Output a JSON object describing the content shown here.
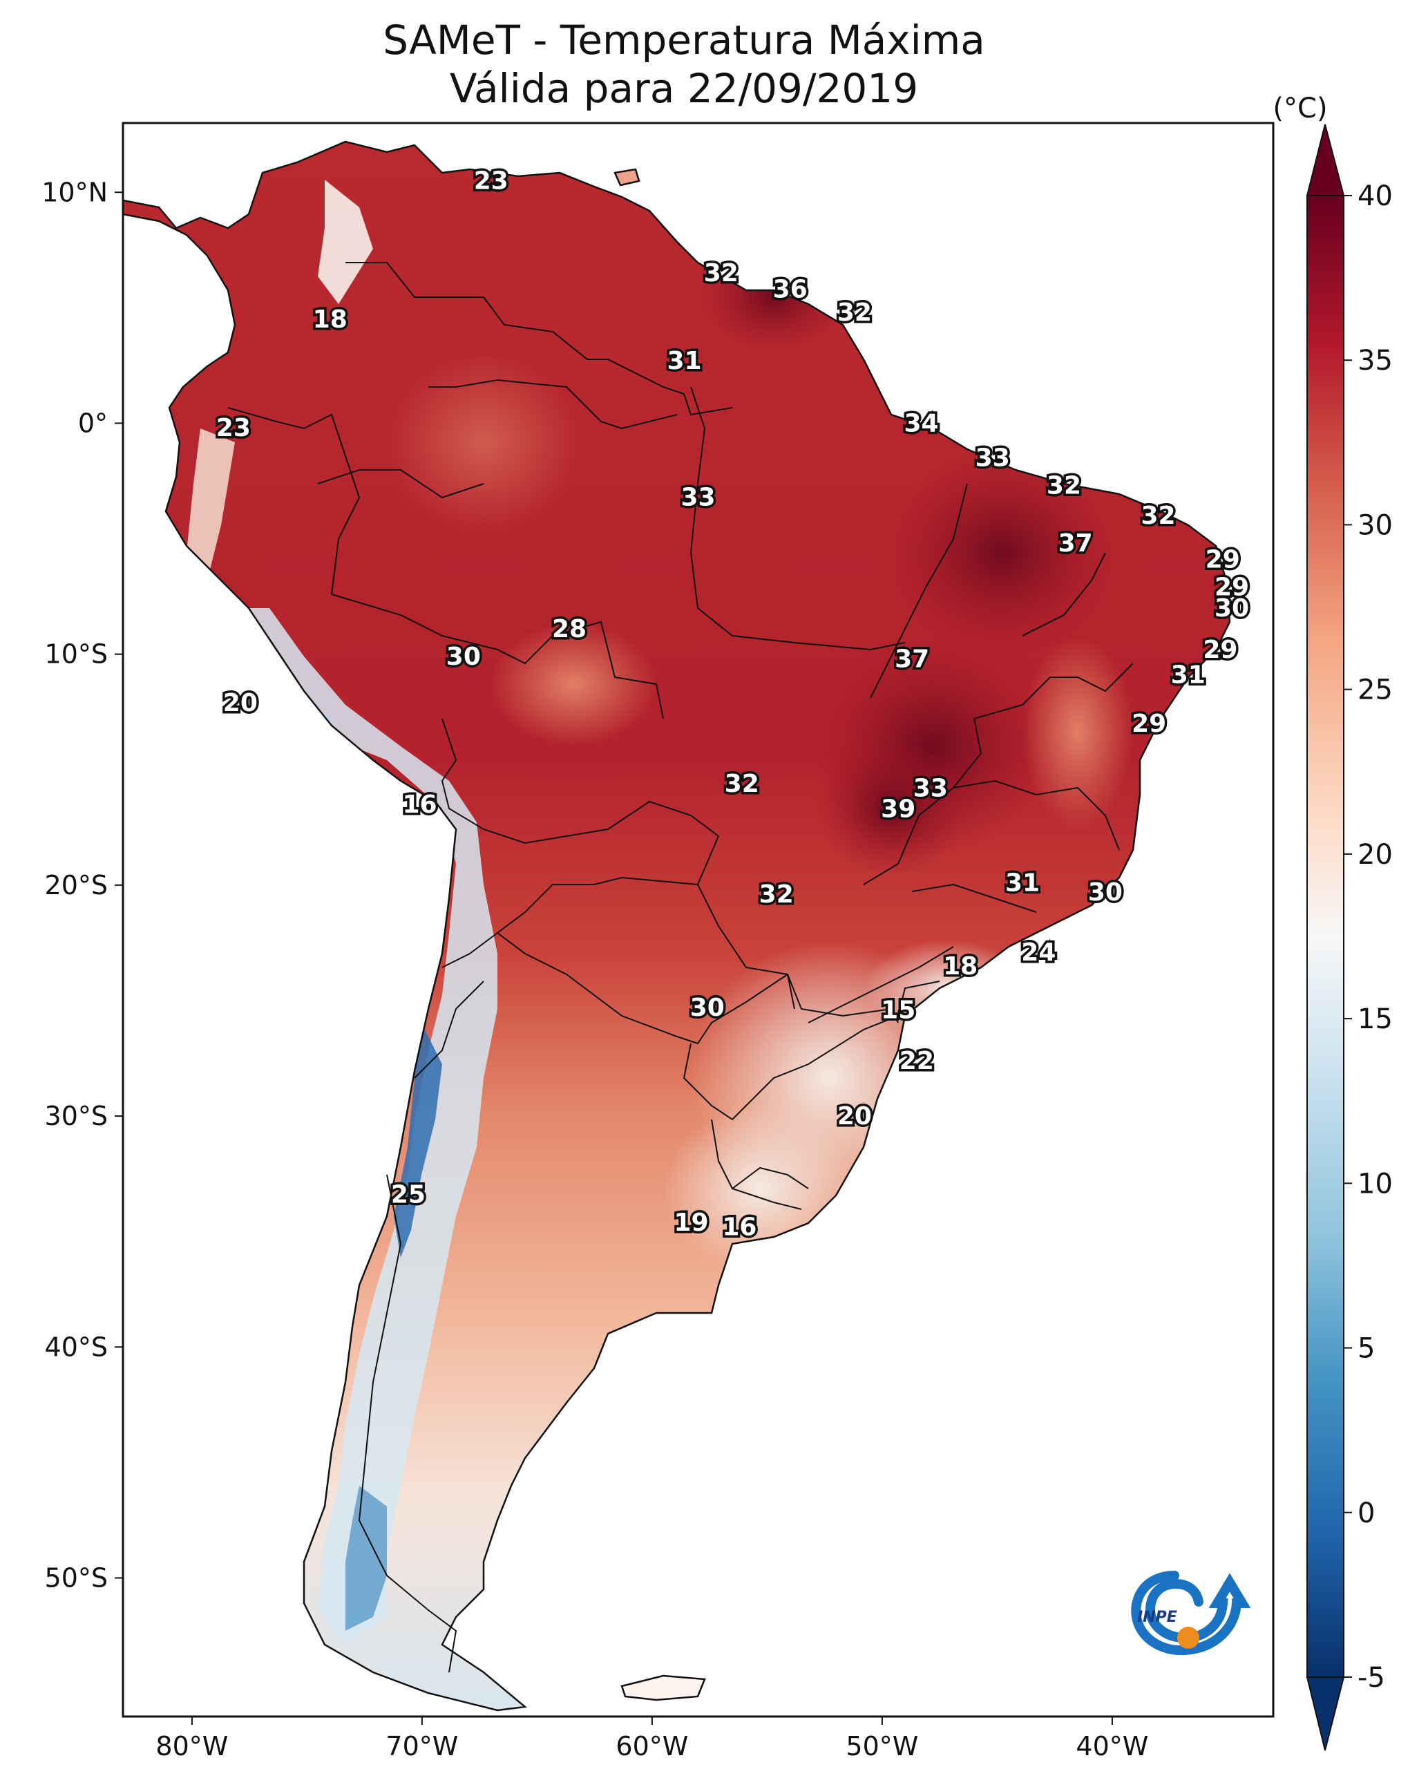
{
  "title": {
    "line1": "SAMeT - Temperatura Máxima",
    "line2": "Válida para 22/09/2019"
  },
  "chart_data": {
    "type": "heatmap",
    "title": "SAMeT - Temperatura Máxima Válida para 22/09/2019",
    "x_axis": {
      "range": [
        -83,
        -33
      ],
      "ticks": [
        -80,
        -70,
        -60,
        -50,
        -40
      ],
      "tick_labels": [
        "80°W",
        "70°W",
        "60°W",
        "50°W",
        "40°W"
      ]
    },
    "y_axis": {
      "range": [
        -56,
        13
      ],
      "ticks": [
        10,
        0,
        -10,
        -20,
        -30,
        -40,
        -50
      ],
      "tick_labels": [
        "10°N",
        "0°",
        "10°S",
        "20°S",
        "30°S",
        "40°S",
        "50°S"
      ]
    },
    "colorbar": {
      "label": "(°C)",
      "range": [
        -5,
        40
      ],
      "ticks": [
        40,
        35,
        30,
        25,
        20,
        15,
        10,
        5,
        0,
        -5
      ],
      "tick_labels": [
        "40",
        "35",
        "30",
        "25",
        "20",
        "15",
        "10",
        "5",
        "0",
        "-5"
      ],
      "extend": "both",
      "colormap": [
        "#08306b",
        "#2166ac",
        "#4393c3",
        "#92c5de",
        "#d1e5f0",
        "#f7f7f7",
        "#fddbc7",
        "#f4a582",
        "#d6604d",
        "#b2182b",
        "#67001f"
      ]
    },
    "annotations": [
      {
        "lon": -67,
        "lat": 10.5,
        "value": "23"
      },
      {
        "lon": -74,
        "lat": 4.5,
        "value": "18"
      },
      {
        "lon": -57,
        "lat": 6.5,
        "value": "32"
      },
      {
        "lon": -54,
        "lat": 5.8,
        "value": "36"
      },
      {
        "lon": -51.2,
        "lat": 4.8,
        "value": "32"
      },
      {
        "lon": -58.6,
        "lat": 2.7,
        "value": "31"
      },
      {
        "lon": -48.3,
        "lat": 0,
        "value": "34"
      },
      {
        "lon": -78.2,
        "lat": -0.2,
        "value": "23"
      },
      {
        "lon": -45.2,
        "lat": -1.5,
        "value": "33"
      },
      {
        "lon": -58,
        "lat": -3.2,
        "value": "33"
      },
      {
        "lon": -42.1,
        "lat": -2.7,
        "value": "32"
      },
      {
        "lon": -38,
        "lat": -4,
        "value": "32"
      },
      {
        "lon": -41.6,
        "lat": -5.2,
        "value": "37"
      },
      {
        "lon": -35.2,
        "lat": -5.9,
        "value": "29"
      },
      {
        "lon": -34.8,
        "lat": -7.1,
        "value": "29"
      },
      {
        "lon": -34.8,
        "lat": -8,
        "value": "30"
      },
      {
        "lon": -63.6,
        "lat": -8.9,
        "value": "28"
      },
      {
        "lon": -68.2,
        "lat": -10.1,
        "value": "30"
      },
      {
        "lon": -35.3,
        "lat": -9.8,
        "value": "29"
      },
      {
        "lon": -48.7,
        "lat": -10.2,
        "value": "37"
      },
      {
        "lon": -36.7,
        "lat": -10.9,
        "value": "31"
      },
      {
        "lon": -77.9,
        "lat": -12.1,
        "value": "20"
      },
      {
        "lon": -38.4,
        "lat": -13,
        "value": "29"
      },
      {
        "lon": -56.1,
        "lat": -15.6,
        "value": "32"
      },
      {
        "lon": -47.9,
        "lat": -15.8,
        "value": "33"
      },
      {
        "lon": -70.1,
        "lat": -16.5,
        "value": "16"
      },
      {
        "lon": -49.3,
        "lat": -16.7,
        "value": "39"
      },
      {
        "lon": -43.9,
        "lat": -19.9,
        "value": "31"
      },
      {
        "lon": -40.3,
        "lat": -20.3,
        "value": "30"
      },
      {
        "lon": -54.6,
        "lat": -20.4,
        "value": "32"
      },
      {
        "lon": -43.2,
        "lat": -22.9,
        "value": "24"
      },
      {
        "lon": -46.6,
        "lat": -23.5,
        "value": "18"
      },
      {
        "lon": -57.6,
        "lat": -25.3,
        "value": "30"
      },
      {
        "lon": -49.3,
        "lat": -25.4,
        "value": "15"
      },
      {
        "lon": -48.5,
        "lat": -27.6,
        "value": "22"
      },
      {
        "lon": -51.2,
        "lat": -30,
        "value": "20"
      },
      {
        "lon": -70.6,
        "lat": -33.4,
        "value": "25"
      },
      {
        "lon": -58.3,
        "lat": -34.6,
        "value": "19"
      },
      {
        "lon": -56.2,
        "lat": -34.8,
        "value": "16"
      }
    ]
  },
  "logo": {
    "text": "INPE"
  }
}
